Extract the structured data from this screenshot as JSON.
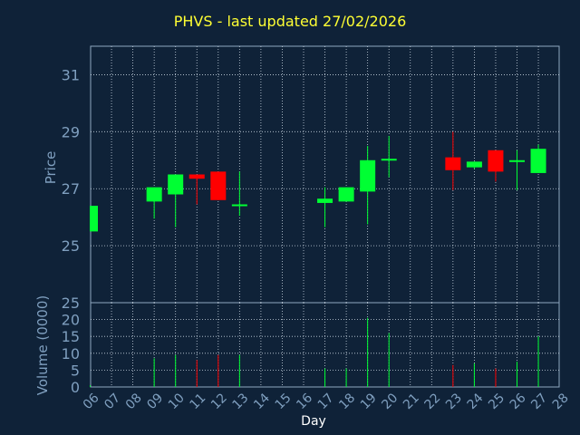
{
  "chart_data": {
    "title": "PHVS - last updated 27/02/2026",
    "price_panel": {
      "type": "candlestick",
      "ylabel": "Price",
      "ylim": [
        23,
        32
      ],
      "yticks": [
        25,
        27,
        29,
        31
      ],
      "grid": true,
      "x": [
        "06",
        "09",
        "10",
        "11",
        "12",
        "13",
        "17",
        "18",
        "19",
        "20",
        "23",
        "24",
        "25",
        "26",
        "27"
      ],
      "open": [
        25.5,
        26.55,
        26.8,
        27.5,
        27.6,
        26.45,
        26.5,
        26.55,
        26.9,
        28.05,
        28.1,
        27.75,
        28.35,
        28.0,
        27.55
      ],
      "high": [
        26.4,
        27.05,
        27.5,
        27.5,
        27.6,
        27.6,
        27.05,
        27.05,
        28.5,
        28.85,
        29.0,
        27.95,
        28.35,
        28.35,
        28.55
      ],
      "low": [
        25.5,
        25.95,
        25.65,
        26.45,
        26.6,
        26.05,
        25.65,
        26.55,
        25.75,
        27.4,
        26.95,
        27.7,
        27.25,
        26.95,
        27.55
      ],
      "close": [
        26.4,
        27.05,
        27.5,
        27.35,
        26.6,
        26.45,
        26.65,
        27.05,
        28.0,
        28.05,
        27.65,
        27.95,
        27.6,
        28.0,
        28.4
      ],
      "colors": {
        "up": "#00ff33",
        "down": "#ff0000"
      }
    },
    "volume_panel": {
      "type": "bar",
      "ylabel": "Volume (0000)",
      "ylim": [
        0,
        25
      ],
      "yticks": [
        0,
        5,
        10,
        15,
        20,
        25
      ],
      "x": [
        "06",
        "09",
        "10",
        "11",
        "12",
        "13",
        "17",
        "18",
        "19",
        "20",
        "23",
        "24",
        "25",
        "26",
        "27"
      ],
      "values": [
        0.5,
        8.5,
        9.5,
        8.0,
        9.5,
        9.5,
        5.5,
        5.5,
        20.5,
        16.0,
        6.5,
        7.0,
        5.5,
        7.5,
        15.0
      ]
    },
    "x_axis": {
      "label": "Day",
      "ticks": [
        "06",
        "07",
        "08",
        "09",
        "10",
        "11",
        "12",
        "13",
        "14",
        "15",
        "16",
        "17",
        "18",
        "19",
        "20",
        "21",
        "22",
        "23",
        "24",
        "25",
        "26",
        "27",
        "28"
      ]
    }
  }
}
